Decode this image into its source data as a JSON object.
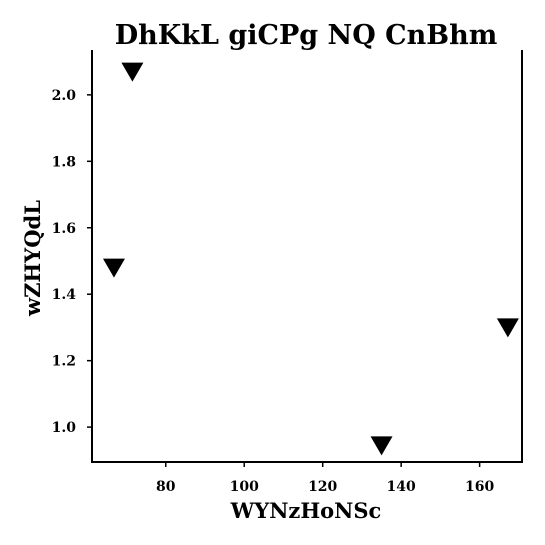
{
  "chart_data": {
    "type": "scatter",
    "title": "DhKkL  giCPg NQ CnBhm",
    "xlabel": "WYNzHoNSc",
    "ylabel": "wZHYQdL",
    "xlim": [
      61.2,
      170.8
    ],
    "ylim": [
      0.895,
      2.135
    ],
    "x_ticks": [
      80,
      100,
      120,
      140,
      160
    ],
    "y_ticks": [
      1.0,
      1.2,
      1.4,
      1.6,
      1.8,
      2.0
    ],
    "x_tick_labels": [
      "80",
      "100",
      "120",
      "140",
      "160"
    ],
    "y_tick_labels": [
      "1.0",
      "1.2",
      "1.4",
      "1.6",
      "1.8",
      "2.0"
    ],
    "marker": "triangle-down",
    "marker_color": "#000000",
    "grid": false,
    "points": [
      {
        "x": 71.5,
        "y": 2.07
      },
      {
        "x": 66.8,
        "y": 1.48
      },
      {
        "x": 135.0,
        "y": 0.945
      },
      {
        "x": 167.2,
        "y": 1.3
      }
    ]
  }
}
